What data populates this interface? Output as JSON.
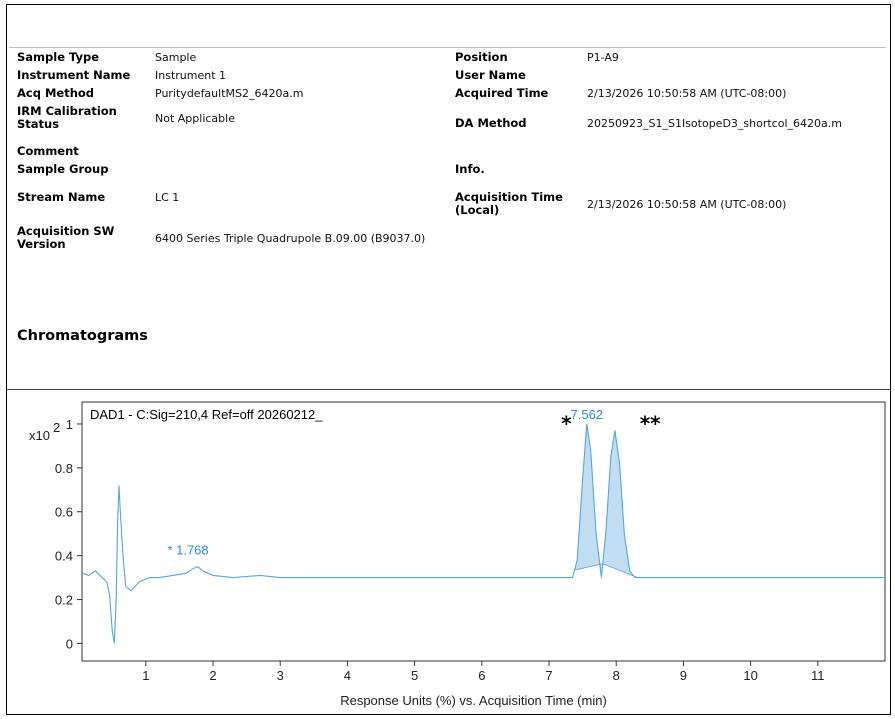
{
  "report": {
    "fields_left": [
      {
        "label": "Sample Type",
        "value": "Sample"
      },
      {
        "label": "Instrument Name",
        "value": "Instrument 1"
      },
      {
        "label": "Acq Method",
        "value": "PuritydefaultMS2_6420a.m"
      },
      {
        "label": "IRM Calibration Status",
        "value": "Not Applicable"
      },
      {
        "label": "Comment",
        "value": ""
      },
      {
        "label": "Sample Group",
        "value": ""
      },
      {
        "label": "Stream Name",
        "value": "LC 1"
      },
      {
        "label": "Acquisition SW Version",
        "value": "6400 Series Triple Quadrupole B.09.00 (B9037.0)"
      }
    ],
    "fields_right": [
      {
        "label": "Position",
        "value": "P1-A9"
      },
      {
        "label": "User Name",
        "value": ""
      },
      {
        "label": "Acquired Time",
        "value": "2/13/2026 10:50:58 AM (UTC-08:00)"
      },
      {
        "label": "DA Method",
        "value": "20250923_S1_S1IsotopeD3_shortcol_6420a.m"
      },
      {
        "label": "Info.",
        "value": ""
      },
      {
        "label": "Acquisition Time (Local)",
        "value": "2/13/2026 10:50:58 AM (UTC-08:00)"
      }
    ],
    "section_title": "Chromatograms"
  },
  "chart_data": {
    "type": "line",
    "title": "DAD1 - C:Sig=210,4  Ref=off 20260212_",
    "xlabel": "Response Units (%) vs. Acquisition Time (min)",
    "y_multiplier": "x10",
    "y_exponent": "2",
    "xlim": [
      0.05,
      12.0
    ],
    "ylim": [
      -0.08,
      1.1
    ],
    "x_ticks": [
      1,
      2,
      3,
      4,
      5,
      6,
      7,
      8,
      9,
      10,
      11
    ],
    "y_ticks": [
      0,
      0.2,
      0.4,
      0.6,
      0.8,
      1
    ],
    "y_tick_labels": [
      "0",
      "0.2",
      "0.4",
      "0.6",
      "0.8",
      "1"
    ],
    "line_color": "#5aa5d8",
    "fill_color": "#b9d9f0",
    "label_color": "#2e8cc8",
    "series": [
      {
        "x": [
          0.05,
          0.15,
          0.25,
          0.35,
          0.42,
          0.46,
          0.5,
          0.53,
          0.56,
          0.58,
          0.6,
          0.62,
          0.66,
          0.7,
          0.78,
          0.9,
          1.05,
          1.2,
          1.4,
          1.6,
          1.7,
          1.77,
          1.85,
          2.0,
          2.3,
          2.7,
          3.0,
          3.5,
          4.0,
          5.0,
          6.0,
          7.0,
          7.35,
          7.42,
          7.5,
          7.562,
          7.62,
          7.7,
          7.78,
          7.85,
          7.92,
          7.98,
          8.05,
          8.12,
          8.2,
          8.28,
          8.35,
          9.0,
          10.0,
          11.0,
          12.0
        ],
        "y": [
          0.32,
          0.31,
          0.33,
          0.3,
          0.28,
          0.22,
          0.06,
          0.0,
          0.22,
          0.55,
          0.72,
          0.6,
          0.4,
          0.26,
          0.24,
          0.28,
          0.3,
          0.3,
          0.31,
          0.32,
          0.34,
          0.35,
          0.33,
          0.31,
          0.3,
          0.31,
          0.3,
          0.3,
          0.3,
          0.3,
          0.3,
          0.3,
          0.3,
          0.38,
          0.75,
          1.0,
          0.88,
          0.5,
          0.3,
          0.52,
          0.85,
          0.97,
          0.82,
          0.5,
          0.33,
          0.3,
          0.3,
          0.3,
          0.3,
          0.3,
          0.3
        ]
      }
    ],
    "peaks": [
      {
        "x": 7.562,
        "label": "7.562",
        "range": [
          7.38,
          7.8
        ]
      },
      {
        "x": 7.98,
        "label": "",
        "range": [
          7.8,
          8.32
        ]
      }
    ],
    "annotations": [
      {
        "text": "* 1.768",
        "x": 1.768,
        "y": 0.35
      },
      {
        "text": "*",
        "x": 7.18,
        "y": 0.97
      },
      {
        "text": "**",
        "x": 8.35,
        "y": 0.97
      }
    ]
  }
}
